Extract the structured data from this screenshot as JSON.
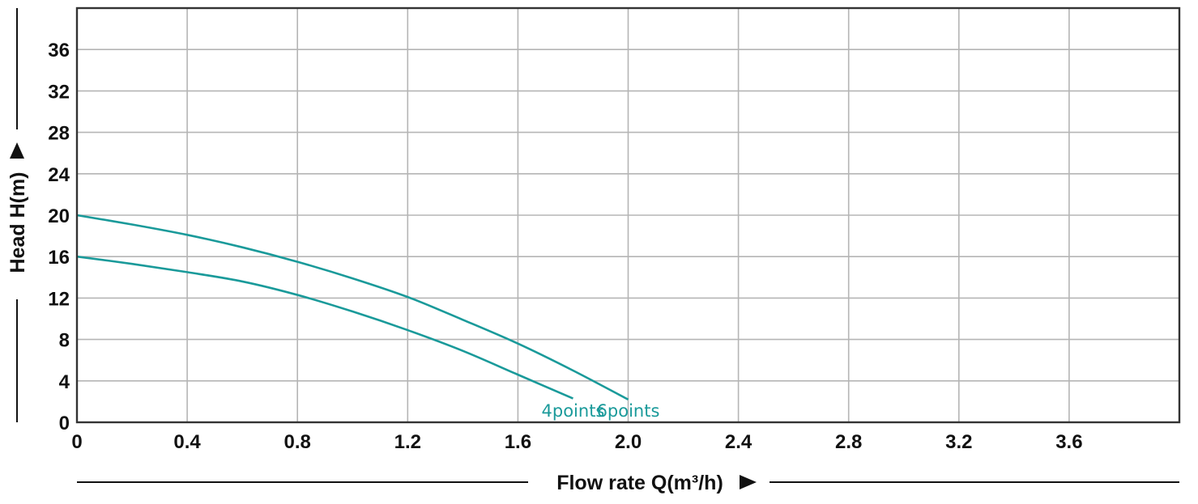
{
  "chart_data": {
    "type": "line",
    "title": "",
    "xlabel": "Flow rate Q(m³/h)",
    "ylabel": "Head H(m)",
    "xlim": [
      0,
      4.0
    ],
    "ylim": [
      0,
      40
    ],
    "x_ticks": [
      0,
      0.4,
      0.8,
      1.2,
      1.6,
      2.0,
      2.4,
      2.8,
      3.2,
      3.6
    ],
    "x_tick_labels": [
      "0",
      "0.4",
      "0.8",
      "1.2",
      "1.6",
      "2.0",
      "2.4",
      "2.8",
      "3.2",
      "3.6"
    ],
    "y_ticks": [
      0,
      4,
      8,
      12,
      16,
      20,
      24,
      28,
      32,
      36
    ],
    "y_tick_labels": [
      "0",
      "4",
      "8",
      "12",
      "16",
      "20",
      "24",
      "28",
      "32",
      "36"
    ],
    "grid": true,
    "series": [
      {
        "name": "4points",
        "color": "#1a9a9a",
        "x": [
          0,
          0.2,
          0.4,
          0.6,
          0.8,
          1.0,
          1.2,
          1.4,
          1.6,
          1.8
        ],
        "y": [
          16.0,
          15.3,
          14.5,
          13.6,
          12.3,
          10.7,
          8.9,
          6.9,
          4.6,
          2.3
        ]
      },
      {
        "name": "6points",
        "color": "#1a9a9a",
        "x": [
          0,
          0.2,
          0.4,
          0.6,
          0.8,
          1.0,
          1.2,
          1.4,
          1.6,
          1.8,
          2.0
        ],
        "y": [
          20.0,
          19.1,
          18.1,
          16.9,
          15.5,
          13.9,
          12.1,
          9.9,
          7.6,
          5.0,
          2.2
        ]
      }
    ],
    "colors": {
      "frame": "#333333",
      "grid": "#b5b5b5",
      "text": "#111111",
      "series": "#1a9a9a"
    }
  }
}
